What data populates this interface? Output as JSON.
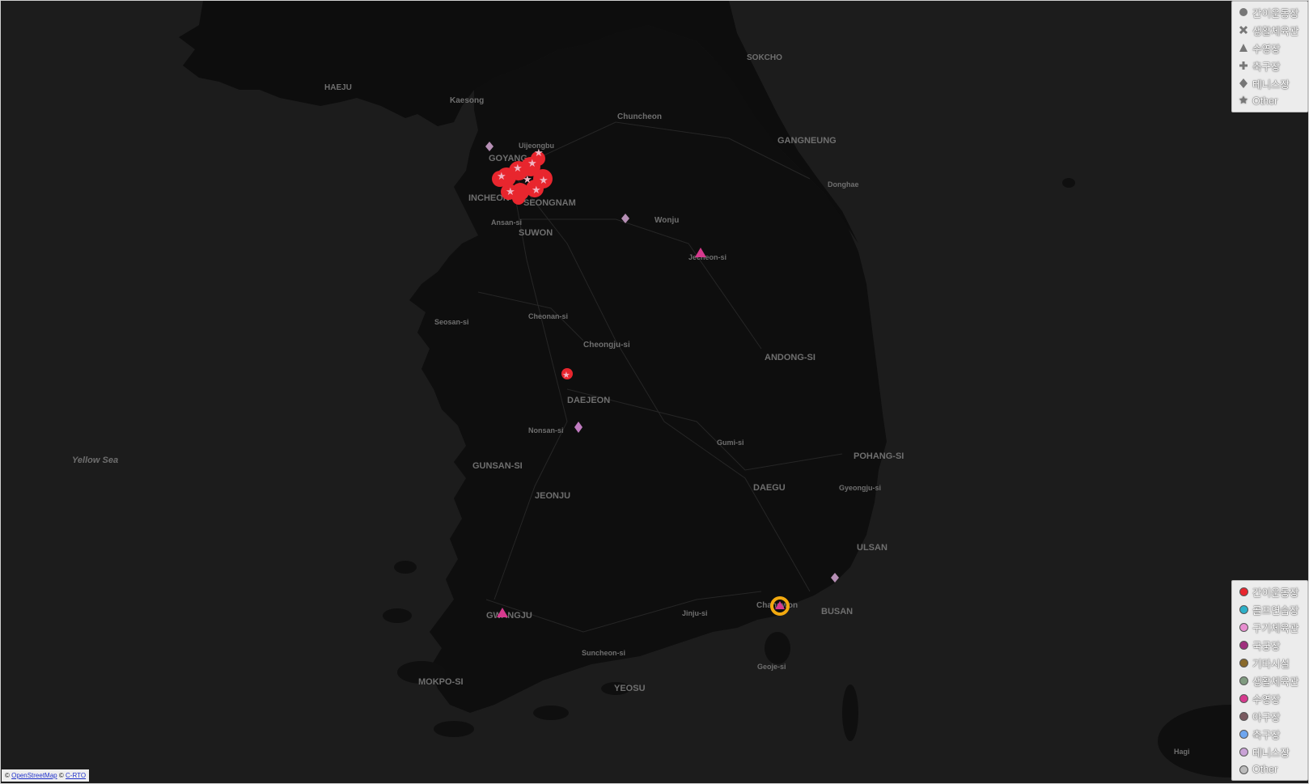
{
  "map": {
    "theme": "dark",
    "sea_label": "Yellow Sea",
    "cities": [
      {
        "name": "HAEJU"
      },
      {
        "name": "Kaesong"
      },
      {
        "name": "Chuncheon"
      },
      {
        "name": "SOKCHO"
      },
      {
        "name": "GANGNEUNG"
      },
      {
        "name": "Donghae"
      },
      {
        "name": "Uijeongbu"
      },
      {
        "name": "GOYANG"
      },
      {
        "name": "INCHEON"
      },
      {
        "name": "SEONGNAM"
      },
      {
        "name": "Ansan-si"
      },
      {
        "name": "SUWON"
      },
      {
        "name": "Wonju"
      },
      {
        "name": "Jecheon-si"
      },
      {
        "name": "Seosan-si"
      },
      {
        "name": "Cheonan-si"
      },
      {
        "name": "Cheongju-si"
      },
      {
        "name": "ANDONG-SI"
      },
      {
        "name": "DAEJEON"
      },
      {
        "name": "Nonsan-si"
      },
      {
        "name": "Gumi-si"
      },
      {
        "name": "POHANG-SI"
      },
      {
        "name": "GUNSAN-SI"
      },
      {
        "name": "JEONJU"
      },
      {
        "name": "DAEGU"
      },
      {
        "name": "Gyeongju-si"
      },
      {
        "name": "ULSAN"
      },
      {
        "name": "Changwon"
      },
      {
        "name": "BUSAN"
      },
      {
        "name": "Jinju-si"
      },
      {
        "name": "GWANGJU"
      },
      {
        "name": "Suncheon-si"
      },
      {
        "name": "Geoje-si"
      },
      {
        "name": "MOKPO-SI"
      },
      {
        "name": "YEOSU"
      },
      {
        "name": "Hagi"
      }
    ],
    "markers": [
      {
        "shape": "diamond",
        "category": "테니스장",
        "color": "#b68fb5"
      },
      {
        "shape": "diamond",
        "category": "테니스장",
        "color": "#b68fb5"
      },
      {
        "shape": "triangle",
        "category": "수영장",
        "color": "#d63a8e"
      },
      {
        "shape": "star",
        "category": "간이운동장",
        "color": "#e8262e"
      },
      {
        "shape": "diamond",
        "category": "테니스장",
        "color": "#c07bc0"
      },
      {
        "shape": "diamond",
        "category": "테니스장",
        "color": "#b68fb5"
      },
      {
        "shape": "circle",
        "category": "selected",
        "color": "#f2a90f"
      },
      {
        "shape": "triangle",
        "category": "수영장",
        "color": "#d63a8e"
      }
    ],
    "cluster": {
      "region": "Seoul metropolitan area",
      "color": "#e8262e"
    }
  },
  "legend_shapes": [
    {
      "label": "간이운동장",
      "icon": "circle-icon"
    },
    {
      "label": "생활체육관",
      "icon": "x-icon"
    },
    {
      "label": "수영장",
      "icon": "triangle-icon"
    },
    {
      "label": "축구장",
      "icon": "plus-icon"
    },
    {
      "label": "테니스장",
      "icon": "diamond-icon"
    },
    {
      "label": "Other",
      "icon": "star-icon"
    }
  ],
  "legend_colors": [
    {
      "label": "간이운동장",
      "color": "#e8262e"
    },
    {
      "label": "골프연습장",
      "color": "#2cb0c8"
    },
    {
      "label": "구기체육관",
      "color": "#e88fd0"
    },
    {
      "label": "국궁장",
      "color": "#a0307e"
    },
    {
      "label": "기타시설",
      "color": "#8a6a2a"
    },
    {
      "label": "생활체육관",
      "color": "#7f9a7f"
    },
    {
      "label": "수영장",
      "color": "#d63a8e"
    },
    {
      "label": "야구장",
      "color": "#7a5a60"
    },
    {
      "label": "축구장",
      "color": "#6ea6f0"
    },
    {
      "label": "테니스장",
      "color": "#c9a2d6"
    },
    {
      "label": "Other",
      "color": "#bbbbbb"
    }
  ],
  "attribution": {
    "prefix": "©",
    "osm": "OpenStreetMap",
    "sep": "©",
    "carto": "C-RTO"
  }
}
